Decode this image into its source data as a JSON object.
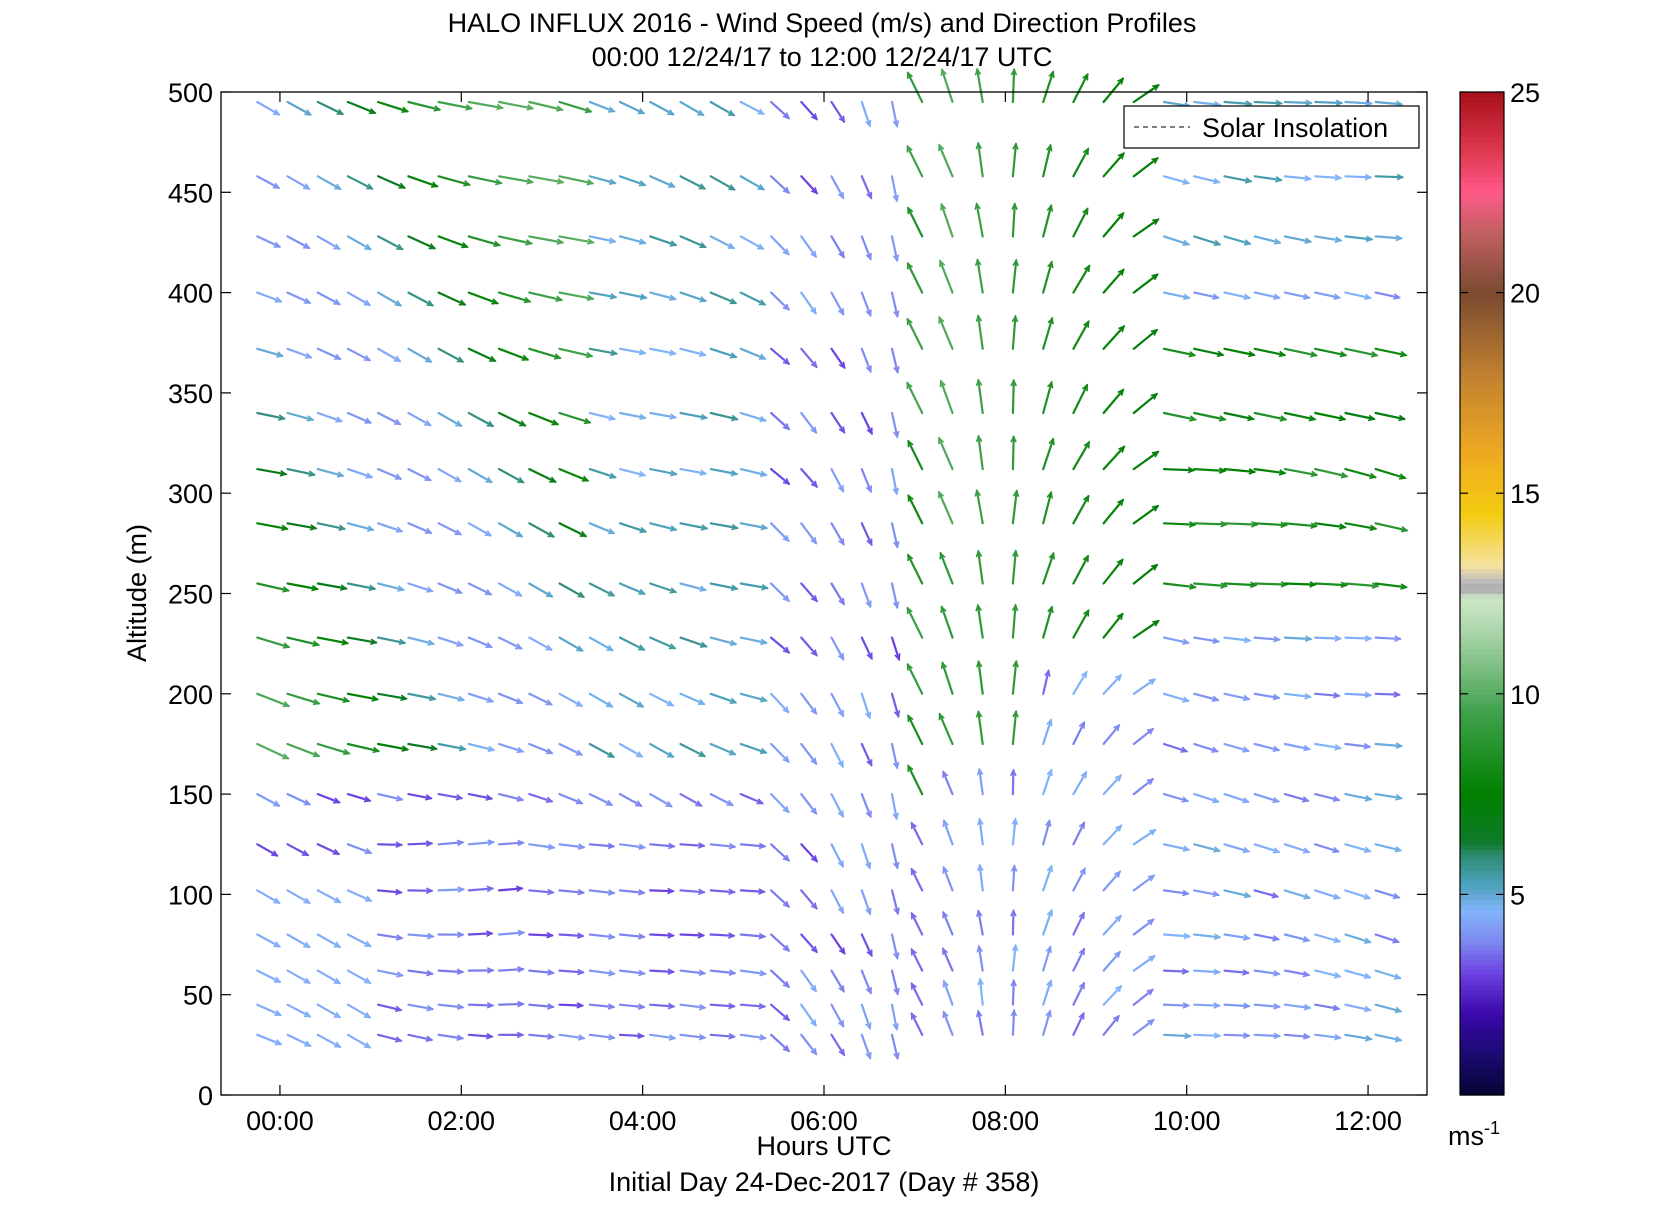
{
  "chart_data": {
    "type": "wind-barb-quiver",
    "title": "HALO INFLUX 2016 - Wind Speed (m/s) and Direction Profiles",
    "subtitle": "00:00 12/24/17 to 12:00 12/24/17  UTC",
    "xlabel": "Hours UTC",
    "ylabel": "Altitude (m)",
    "footer": "Initial Day 24-Dec-2017 (Day # 358)",
    "x_ticks": [
      "00:00",
      "02:00",
      "04:00",
      "06:00",
      "08:00",
      "10:00",
      "12:00"
    ],
    "x_tick_hours": [
      0,
      2,
      4,
      6,
      8,
      10,
      12
    ],
    "xlim_hours": [
      -0.65,
      12.65
    ],
    "y_ticks": [
      0,
      50,
      100,
      150,
      200,
      250,
      300,
      350,
      400,
      450,
      500
    ],
    "ylim": [
      0,
      500
    ],
    "legend": {
      "entry": "Solar Insolation",
      "style": "dashed",
      "placement": "top-right"
    },
    "colorbar": {
      "ticks": [
        5,
        10,
        15,
        20,
        25
      ],
      "range": [
        0,
        25
      ],
      "unit_label": "ms",
      "unit_exponent": "-1",
      "colormap": [
        [
          0,
          "#050533"
        ],
        [
          1,
          "#1a0a70"
        ],
        [
          2,
          "#3a07a8"
        ],
        [
          3,
          "#6a3ee0"
        ],
        [
          3.8,
          "#7e86f0"
        ],
        [
          4.6,
          "#82b4fa"
        ],
        [
          5.3,
          "#4aa0b8"
        ],
        [
          6.0,
          "#2f8a6f"
        ],
        [
          6.3,
          "#0f7a2a"
        ],
        [
          7.5,
          "#008000"
        ],
        [
          9.5,
          "#3ea04a"
        ],
        [
          11.5,
          "#a8d4a8"
        ],
        [
          12.4,
          "#cfe8c8"
        ],
        [
          12.6,
          "#aaaaaa"
        ],
        [
          12.8,
          "#bbbbbb"
        ],
        [
          13.2,
          "#f5e2a0"
        ],
        [
          14.5,
          "#f4cc10"
        ],
        [
          16.0,
          "#eeaa22"
        ],
        [
          18.0,
          "#c08030"
        ],
        [
          20.0,
          "#7a4a30"
        ],
        [
          21.5,
          "#c06060"
        ],
        [
          22.5,
          "#ff5a88"
        ],
        [
          23.5,
          "#e03a50"
        ],
        [
          25,
          "#a8101a"
        ]
      ]
    },
    "grid": false,
    "time_hours": [
      -0.25,
      0.083,
      0.417,
      0.75,
      1.083,
      1.417,
      1.75,
      2.083,
      2.417,
      2.75,
      3.083,
      3.417,
      3.75,
      4.083,
      4.417,
      4.75,
      5.083,
      5.417,
      5.75,
      6.083,
      6.417,
      6.75,
      7.083,
      7.417,
      7.75,
      8.083,
      8.417,
      8.75,
      9.083,
      9.417,
      9.75,
      10.083,
      10.417,
      10.75,
      11.083,
      11.417,
      11.75,
      12.083
    ],
    "altitude_m": [
      30,
      45,
      62,
      80,
      102,
      125,
      150,
      175,
      200,
      228,
      255,
      285,
      312,
      340,
      372,
      400,
      428,
      458,
      495
    ],
    "vector_field_note": "Arrow direction and colour encode wind direction and speed per time/altitude cell"
  }
}
